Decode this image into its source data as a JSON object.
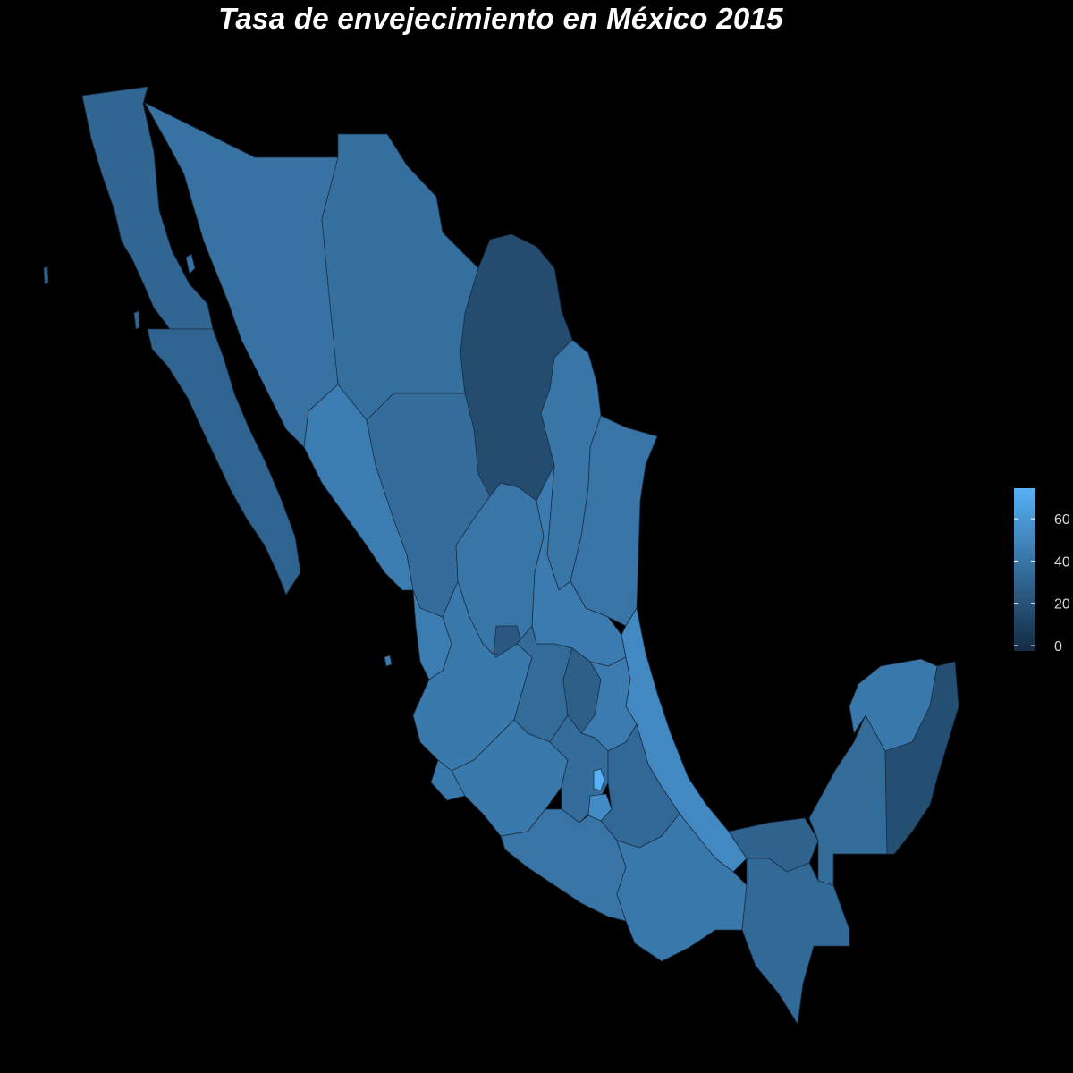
{
  "title": "Tasa de envejecimiento en México 2015",
  "colors": {
    "background": "#000000",
    "low": "#132b43",
    "high": "#56b1f7",
    "border": "#1a2d45",
    "text": "#ffffff"
  },
  "legend": {
    "min": 0,
    "max": 77,
    "ticks": [
      0,
      20,
      40,
      60
    ],
    "tick_labels": [
      "0",
      "20",
      "40",
      "60"
    ]
  },
  "regions": [
    {
      "id": "baja-california",
      "value": 34
    },
    {
      "id": "baja-california-sur",
      "value": 33
    },
    {
      "id": "sonora",
      "value": 41
    },
    {
      "id": "chihuahua",
      "value": 39
    },
    {
      "id": "coahuila",
      "value": 19
    },
    {
      "id": "nuevo-leon",
      "value": 43
    },
    {
      "id": "tamaulipas",
      "value": 42
    },
    {
      "id": "sinaloa",
      "value": 47
    },
    {
      "id": "durango",
      "value": 38
    },
    {
      "id": "zacatecas",
      "value": 43
    },
    {
      "id": "san-luis-potosi",
      "value": 46
    },
    {
      "id": "nayarit",
      "value": 47
    },
    {
      "id": "aguascalientes",
      "value": 26
    },
    {
      "id": "jalisco",
      "value": 45
    },
    {
      "id": "guanajuato",
      "value": 37
    },
    {
      "id": "queretaro",
      "value": 30
    },
    {
      "id": "hidalgo",
      "value": 46
    },
    {
      "id": "veracruz",
      "value": 54
    },
    {
      "id": "michoacan",
      "value": 45
    },
    {
      "id": "colima",
      "value": 44
    },
    {
      "id": "mexico",
      "value": 38
    },
    {
      "id": "ciudad-de-mexico",
      "value": 77
    },
    {
      "id": "morelos",
      "value": 55
    },
    {
      "id": "tlaxcala",
      "value": 36
    },
    {
      "id": "puebla",
      "value": 35
    },
    {
      "id": "guerrero",
      "value": 42
    },
    {
      "id": "oaxaca",
      "value": 44
    },
    {
      "id": "tabasco",
      "value": 32
    },
    {
      "id": "chiapas",
      "value": 36
    },
    {
      "id": "campeche",
      "value": 37
    },
    {
      "id": "yucatan",
      "value": 44
    },
    {
      "id": "quintana-roo",
      "value": 20
    }
  ]
}
